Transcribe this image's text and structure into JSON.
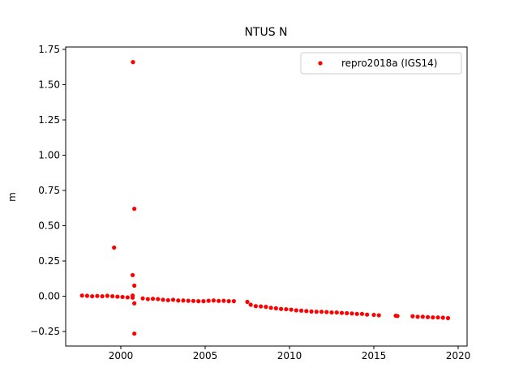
{
  "chart_data": {
    "type": "scatter",
    "title": "NTUS N",
    "ylabel": "m",
    "xlim": [
      1996.73,
      2020.53
    ],
    "ylim": [
      -0.353,
      1.767
    ],
    "xticks": [
      2000,
      2005,
      2010,
      2015,
      2020
    ],
    "yticks": [
      {
        "value": -0.25,
        "label": "−0.25"
      },
      {
        "value": 0,
        "label": "0.00"
      },
      {
        "value": 0.25,
        "label": "0.25"
      },
      {
        "value": 0.5,
        "label": "0.50"
      },
      {
        "value": 0.75,
        "label": "0.75"
      },
      {
        "value": 1,
        "label": "1.00"
      },
      {
        "value": 1.25,
        "label": "1.25"
      },
      {
        "value": 1.5,
        "label": "1.50"
      },
      {
        "value": 1.75,
        "label": "1.75"
      }
    ],
    "legend": "upper right",
    "series": [
      {
        "name": "repro2018a (IGS14)",
        "color": "#ff0000",
        "x": [
          1997.7,
          1998.0,
          1998.3,
          1998.6,
          1998.9,
          1999.2,
          1999.5,
          1999.8,
          2000.1,
          2000.4,
          2000.7,
          2000.7,
          2001.3,
          2001.6,
          2001.9,
          2002.2,
          2002.5,
          2002.8,
          2003.1,
          2003.4,
          2003.7,
          2004.0,
          2004.3,
          2004.6,
          2004.9,
          2005.2,
          2005.5,
          2005.8,
          2006.1,
          2006.4,
          2006.7,
          2007.5,
          2007.7,
          2008.0,
          2008.3,
          2008.6,
          2008.9,
          2009.2,
          2009.5,
          2009.8,
          2010.1,
          2010.4,
          2010.7,
          2011.0,
          2011.3,
          2011.6,
          2011.9,
          2012.2,
          2012.5,
          2012.8,
          2013.1,
          2013.4,
          2013.7,
          2014.0,
          2014.3,
          2014.6,
          2015.0,
          2015.3,
          2016.3,
          2016.4,
          2017.3,
          2017.6,
          2017.9,
          2018.2,
          2018.5,
          2018.8,
          2019.1,
          2019.4,
          2000.72,
          2000.8,
          1999.6,
          2000.7,
          2000.8,
          2000.8,
          2000.8
        ],
        "values": [
          0.005,
          0.003,
          0.0,
          0.002,
          0.0,
          0.003,
          0.0,
          -0.003,
          -0.005,
          -0.008,
          0.005,
          -0.01,
          -0.015,
          -0.02,
          -0.018,
          -0.02,
          -0.025,
          -0.028,
          -0.025,
          -0.03,
          -0.03,
          -0.032,
          -0.033,
          -0.035,
          -0.035,
          -0.032,
          -0.03,
          -0.033,
          -0.032,
          -0.035,
          -0.035,
          -0.04,
          -0.06,
          -0.07,
          -0.072,
          -0.075,
          -0.082,
          -0.085,
          -0.09,
          -0.092,
          -0.095,
          -0.1,
          -0.102,
          -0.105,
          -0.108,
          -0.11,
          -0.11,
          -0.112,
          -0.115,
          -0.115,
          -0.118,
          -0.12,
          -0.122,
          -0.125,
          -0.125,
          -0.13,
          -0.132,
          -0.135,
          -0.138,
          -0.14,
          -0.142,
          -0.145,
          -0.145,
          -0.148,
          -0.15,
          -0.15,
          -0.152,
          -0.155,
          1.66,
          0.62,
          0.345,
          0.15,
          0.075,
          -0.05,
          -0.265
        ]
      }
    ]
  }
}
